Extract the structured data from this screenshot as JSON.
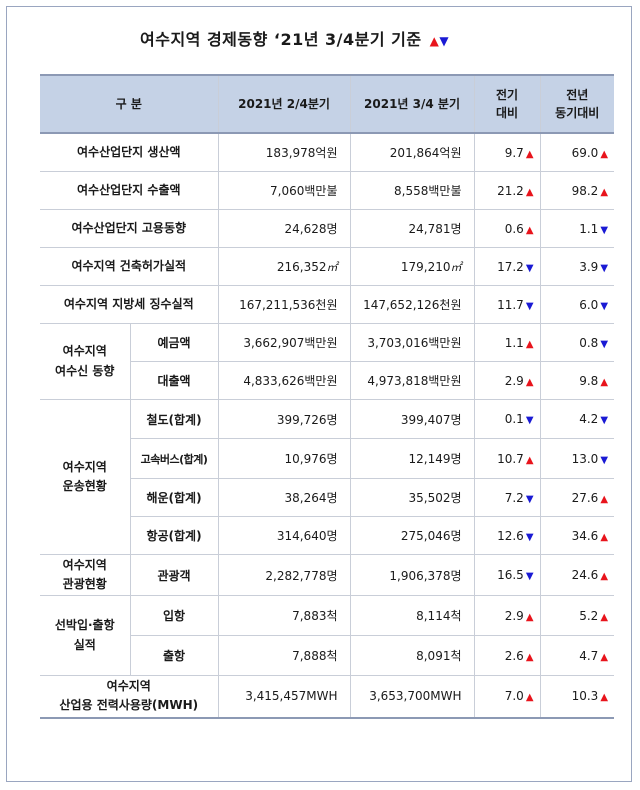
{
  "title": "여수지역 경제동향 ‘21년 3/4분기 기준",
  "legend_up": "▲",
  "legend_down": "▼",
  "colors": {
    "up": "#e8141c",
    "down": "#1a1ad4",
    "header_bg": "#c5d2e6"
  },
  "headers": {
    "category": "구    분",
    "q2": "2021년 2/4분기",
    "q3": "2021년 3/4 분기",
    "qoq": "전기\n대비",
    "yoy": "전년\n동기대비"
  },
  "rows": {
    "r1": {
      "label": "여수산업단지 생산액",
      "q2": "183,978억원",
      "q3": "201,864억원",
      "qoq": "9.7",
      "qoq_dir": "up",
      "yoy": "69.0",
      "yoy_dir": "up"
    },
    "r2": {
      "label": "여수산업단지 수출액",
      "q2": "7,060백만불",
      "q3": "8,558백만불",
      "qoq": "21.2",
      "qoq_dir": "up",
      "yoy": "98.2",
      "yoy_dir": "up"
    },
    "r3": {
      "label": "여수산업단지 고용동향",
      "q2": "24,628명",
      "q3": "24,781명",
      "qoq": "0.6",
      "qoq_dir": "up",
      "yoy": "1.1",
      "yoy_dir": "down"
    },
    "r4": {
      "label": "여수지역 건축허가실적",
      "q2": "216,352",
      "q3": "179,210",
      "unit": "㎡",
      "qoq": "17.2",
      "qoq_dir": "down",
      "yoy": "3.9",
      "yoy_dir": "down"
    },
    "r5": {
      "label": "여수지역 지방세 징수실적",
      "q2": "167,211,536천원",
      "q3": "147,652,126천원",
      "qoq": "11.7",
      "qoq_dir": "down",
      "yoy": "6.0",
      "yoy_dir": "down"
    },
    "g1": {
      "label": "여수지역\n여수신 동향"
    },
    "r6": {
      "label": "예금액",
      "q2": "3,662,907백만원",
      "q3": "3,703,016백만원",
      "qoq": "1.1",
      "qoq_dir": "up",
      "yoy": "0.8",
      "yoy_dir": "down"
    },
    "r7": {
      "label": "대출액",
      "q2": "4,833,626백만원",
      "q3": "4,973,818백만원",
      "qoq": "2.9",
      "qoq_dir": "up",
      "yoy": "9.8",
      "yoy_dir": "up"
    },
    "g2": {
      "label": "여수지역\n운송현황"
    },
    "r8": {
      "label": "철도(합계)",
      "q2": "399,726명",
      "q3": "399,407명",
      "qoq": "0.1",
      "qoq_dir": "down",
      "yoy": "4.2",
      "yoy_dir": "down"
    },
    "r9": {
      "label": "고속버스(합계)",
      "q2": "10,976명",
      "q3": "12,149명",
      "qoq": "10.7",
      "qoq_dir": "up",
      "yoy": "13.0",
      "yoy_dir": "down"
    },
    "r10": {
      "label": "해운(합계)",
      "q2": "38,264명",
      "q3": "35,502명",
      "qoq": "7.2",
      "qoq_dir": "down",
      "yoy": "27.6",
      "yoy_dir": "up"
    },
    "r11": {
      "label": "항공(합계)",
      "q2": "314,640명",
      "q3": "275,046명",
      "qoq": "12.6",
      "qoq_dir": "down",
      "yoy": "34.6",
      "yoy_dir": "up"
    },
    "g3": {
      "label": "여수지역\n관광현황"
    },
    "r12": {
      "label": "관광객",
      "q2": "2,282,778명",
      "q3": "1,906,378명",
      "qoq": "16.5",
      "qoq_dir": "down",
      "yoy": "24.6",
      "yoy_dir": "up"
    },
    "g4": {
      "label": "선박입·출항\n실적"
    },
    "r13": {
      "label": "입항",
      "q2": "7,883척",
      "q3": "8,114척",
      "qoq": "2.9",
      "qoq_dir": "up",
      "yoy": "5.2",
      "yoy_dir": "up"
    },
    "r14": {
      "label": "출항",
      "q2": "7,888척",
      "q3": "8,091척",
      "qoq": "2.6",
      "qoq_dir": "up",
      "yoy": "4.7",
      "yoy_dir": "up"
    },
    "r15": {
      "label": "여수지역\n산업용 전력사용량(MWH)",
      "q2": "3,415,457MWH",
      "q3": "3,653,700MWH",
      "qoq": "7.0",
      "qoq_dir": "up",
      "yoy": "10.3",
      "yoy_dir": "up"
    }
  }
}
